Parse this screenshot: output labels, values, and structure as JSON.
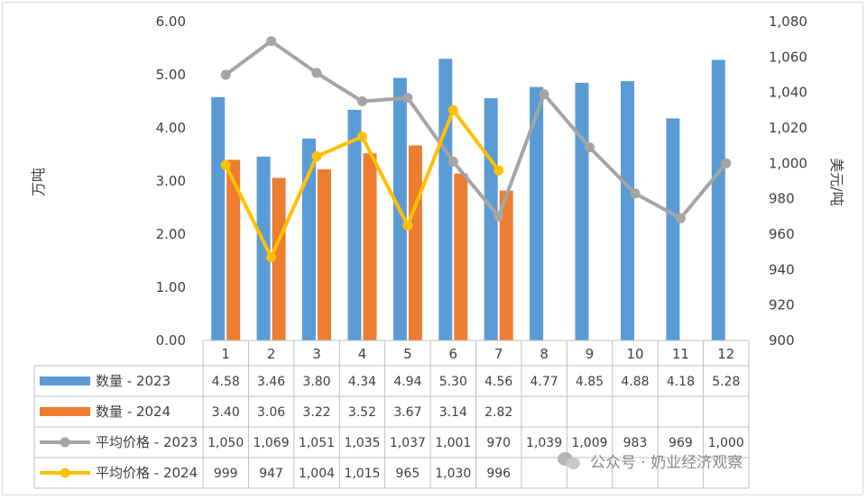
{
  "chart_data": {
    "type": "bar+line",
    "categories": [
      "1",
      "2",
      "3",
      "4",
      "5",
      "6",
      "7",
      "8",
      "9",
      "10",
      "11",
      "12"
    ],
    "left_axis": {
      "label": "万吨",
      "ylim": [
        0,
        6
      ],
      "ticks": [
        "0.00",
        "1.00",
        "2.00",
        "3.00",
        "4.00",
        "5.00",
        "6.00"
      ]
    },
    "right_axis": {
      "label": "美元/吨",
      "ylim": [
        900,
        1080
      ],
      "ticks": [
        "900",
        "920",
        "940",
        "960",
        "980",
        "1,000",
        "1,020",
        "1,040",
        "1,060",
        "1,080"
      ]
    },
    "series": [
      {
        "name": "数量 - 2023",
        "kind": "bar",
        "axis": "left",
        "color": "#5b9bd5",
        "values": [
          4.58,
          3.46,
          3.8,
          4.34,
          4.94,
          5.3,
          4.56,
          4.77,
          4.85,
          4.88,
          4.18,
          5.28
        ],
        "labels": [
          "4.58",
          "3.46",
          "3.80",
          "4.34",
          "4.94",
          "5.30",
          "4.56",
          "4.77",
          "4.85",
          "4.88",
          "4.18",
          "5.28"
        ]
      },
      {
        "name": "数量 - 2024",
        "kind": "bar",
        "axis": "left",
        "color": "#ed7d31",
        "values": [
          3.4,
          3.06,
          3.22,
          3.52,
          3.67,
          3.14,
          2.82,
          null,
          null,
          null,
          null,
          null
        ],
        "labels": [
          "3.40",
          "3.06",
          "3.22",
          "3.52",
          "3.67",
          "3.14",
          "2.82",
          "",
          "",
          "",
          "",
          ""
        ]
      },
      {
        "name": "平均价格 - 2023",
        "kind": "line",
        "axis": "right",
        "color": "#a5a5a5",
        "values": [
          1050,
          1069,
          1051,
          1035,
          1037,
          1001,
          970,
          1039,
          1009,
          983,
          969,
          1000
        ],
        "labels": [
          "1,050",
          "1,069",
          "1,051",
          "1,035",
          "1,037",
          "1,001",
          "970",
          "1,039",
          "1,009",
          "983",
          "969",
          "1,000"
        ]
      },
      {
        "name": "平均价格 - 2024",
        "kind": "line",
        "axis": "right",
        "color": "#ffc000",
        "values": [
          999,
          947,
          1004,
          1015,
          965,
          1030,
          996,
          null,
          null,
          null,
          null,
          null
        ],
        "labels": [
          "999",
          "947",
          "1,004",
          "1,015",
          "965",
          "1,030",
          "996",
          "",
          "",
          "",
          "",
          ""
        ]
      }
    ],
    "grid": false,
    "legend": "data-table"
  },
  "watermark": "公众号 · 奶业经济观察"
}
